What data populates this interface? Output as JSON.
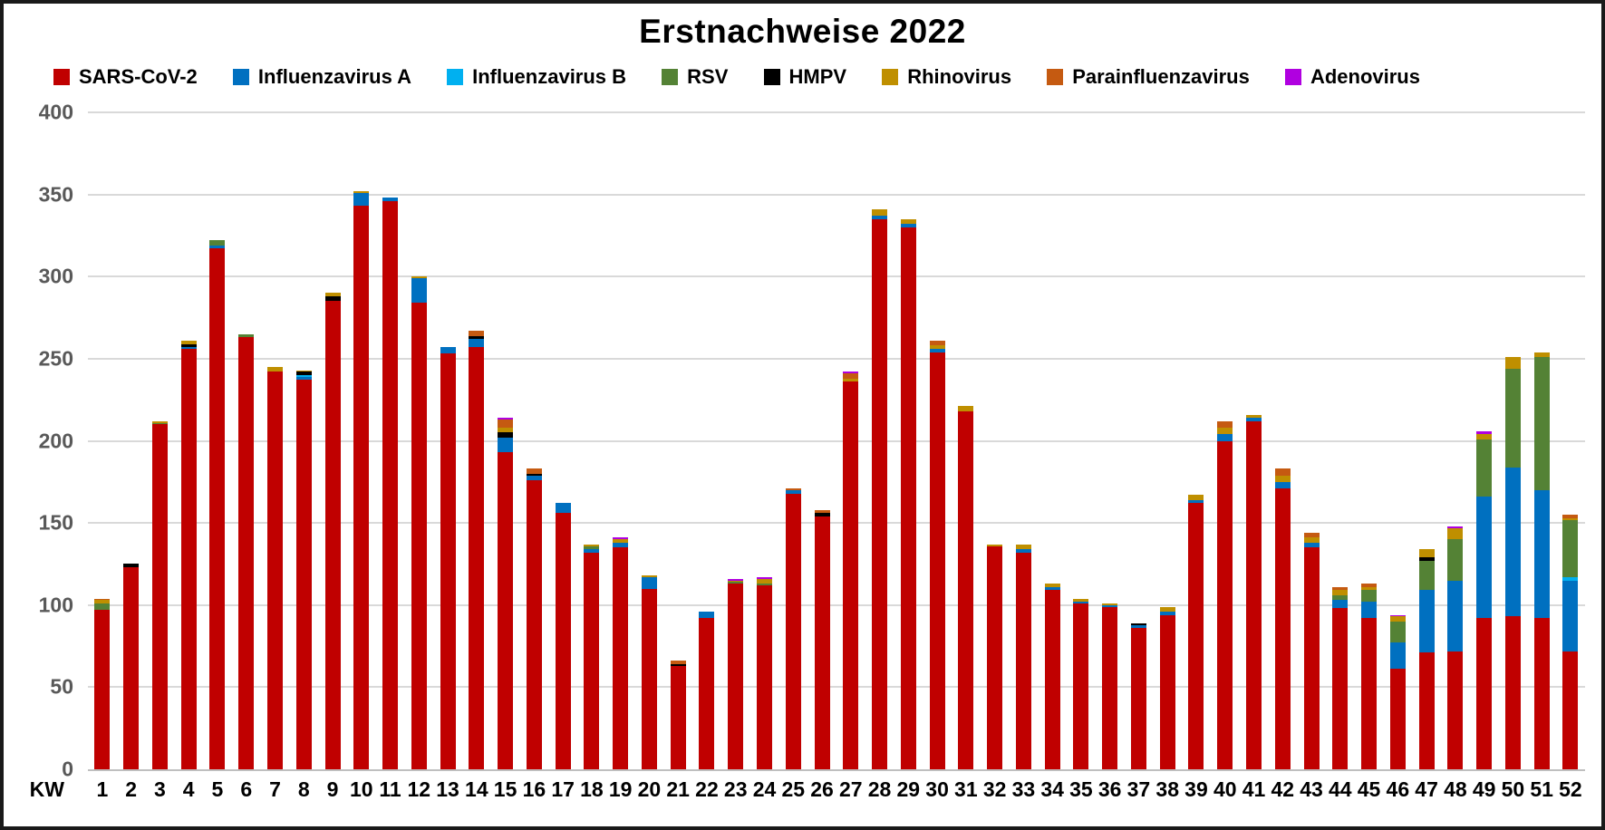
{
  "title": "Erstnachweise 2022",
  "axis": {
    "kw_label": "KW",
    "y_ticks": [
      0,
      50,
      100,
      150,
      200,
      250,
      300,
      350,
      400
    ]
  },
  "chart_data": {
    "type": "bar",
    "stacked": true,
    "title": "Erstnachweise 2022",
    "xlabel": "KW",
    "ylabel": "",
    "ylim": [
      0,
      400
    ],
    "grid": true,
    "legend_position": "top",
    "categories": [
      "1",
      "2",
      "3",
      "4",
      "5",
      "6",
      "7",
      "8",
      "9",
      "10",
      "11",
      "12",
      "13",
      "14",
      "15",
      "16",
      "17",
      "18",
      "19",
      "20",
      "21",
      "22",
      "23",
      "24",
      "25",
      "26",
      "27",
      "28",
      "29",
      "30",
      "31",
      "32",
      "33",
      "34",
      "35",
      "36",
      "37",
      "38",
      "39",
      "40",
      "41",
      "42",
      "43",
      "44",
      "45",
      "46",
      "47",
      "48",
      "49",
      "50",
      "51",
      "52"
    ],
    "series": [
      {
        "name": "SARS-CoV-2",
        "color": "#C00000",
        "values": [
          97,
          123,
          210,
          256,
          317,
          263,
          242,
          237,
          285,
          343,
          346,
          284,
          253,
          257,
          193,
          176,
          156,
          132,
          135,
          110,
          63,
          92,
          113,
          112,
          168,
          154,
          236,
          335,
          330,
          254,
          218,
          136,
          132,
          109,
          101,
          99,
          86,
          94,
          162,
          200,
          212,
          171,
          135,
          98,
          92,
          61,
          71,
          72,
          92,
          93,
          92,
          72
        ]
      },
      {
        "name": "Influenzavirus A",
        "color": "#0070C0",
        "values": [
          0,
          0,
          0,
          1,
          2,
          0,
          0,
          2,
          0,
          8,
          2,
          15,
          4,
          5,
          9,
          3,
          6,
          2,
          3,
          7,
          0,
          4,
          0,
          0,
          2,
          0,
          0,
          2,
          2,
          2,
          0,
          0,
          2,
          2,
          1,
          1,
          2,
          2,
          2,
          4,
          2,
          4,
          3,
          5,
          10,
          16,
          38,
          43,
          74,
          91,
          78,
          43
        ]
      },
      {
        "name": "Influenzavirus B",
        "color": "#00B0F0",
        "values": [
          0,
          0,
          0,
          0,
          0,
          0,
          0,
          1,
          0,
          0,
          0,
          0,
          0,
          0,
          0,
          0,
          0,
          0,
          0,
          0,
          0,
          0,
          0,
          0,
          0,
          0,
          0,
          0,
          0,
          0,
          0,
          0,
          0,
          0,
          0,
          0,
          0,
          0,
          0,
          0,
          0,
          0,
          0,
          0,
          0,
          0,
          0,
          0,
          0,
          0,
          0,
          2
        ]
      },
      {
        "name": "RSV",
        "color": "#548235",
        "values": [
          4,
          0,
          1,
          0,
          3,
          2,
          0,
          0,
          0,
          0,
          0,
          0,
          0,
          0,
          0,
          0,
          0,
          2,
          0,
          0,
          0,
          0,
          1,
          1,
          0,
          0,
          0,
          0,
          0,
          0,
          0,
          0,
          0,
          0,
          0,
          0,
          0,
          0,
          0,
          0,
          0,
          0,
          0,
          3,
          7,
          13,
          18,
          25,
          35,
          60,
          81,
          35
        ]
      },
      {
        "name": "HMPV",
        "color": "#000000",
        "values": [
          0,
          2,
          0,
          2,
          0,
          0,
          0,
          2,
          3,
          0,
          0,
          0,
          0,
          2,
          3,
          1,
          0,
          0,
          0,
          0,
          1,
          0,
          0,
          0,
          0,
          2,
          0,
          0,
          0,
          0,
          0,
          0,
          0,
          0,
          0,
          0,
          1,
          0,
          0,
          0,
          0,
          0,
          0,
          0,
          0,
          0,
          2,
          0,
          0,
          0,
          0,
          0
        ]
      },
      {
        "name": "Rhinovirus",
        "color": "#BF8F00",
        "values": [
          2,
          0,
          1,
          2,
          0,
          0,
          3,
          1,
          2,
          1,
          0,
          1,
          0,
          0,
          3,
          0,
          0,
          1,
          2,
          1,
          0,
          0,
          1,
          3,
          0,
          0,
          2,
          4,
          3,
          2,
          3,
          1,
          3,
          2,
          2,
          1,
          0,
          3,
          3,
          4,
          2,
          4,
          3,
          3,
          2,
          3,
          5,
          7,
          3,
          7,
          3,
          1
        ]
      },
      {
        "name": "Parainfluenzavirus",
        "color": "#C55A11",
        "values": [
          1,
          0,
          0,
          0,
          0,
          0,
          0,
          0,
          0,
          0,
          0,
          0,
          0,
          3,
          5,
          3,
          0,
          0,
          0,
          0,
          2,
          0,
          0,
          0,
          1,
          2,
          3,
          0,
          0,
          3,
          0,
          0,
          0,
          0,
          0,
          0,
          0,
          0,
          0,
          4,
          0,
          4,
          3,
          2,
          2,
          0,
          0,
          0,
          0,
          0,
          0,
          2
        ]
      },
      {
        "name": "Adenovirus",
        "color": "#B000E0",
        "values": [
          0,
          0,
          0,
          0,
          0,
          0,
          0,
          0,
          0,
          0,
          0,
          0,
          0,
          0,
          1,
          0,
          0,
          0,
          1,
          0,
          0,
          0,
          1,
          1,
          0,
          0,
          1,
          0,
          0,
          0,
          0,
          0,
          0,
          0,
          0,
          0,
          0,
          0,
          0,
          0,
          0,
          0,
          0,
          0,
          0,
          1,
          0,
          1,
          2,
          0,
          0,
          0
        ]
      }
    ]
  }
}
